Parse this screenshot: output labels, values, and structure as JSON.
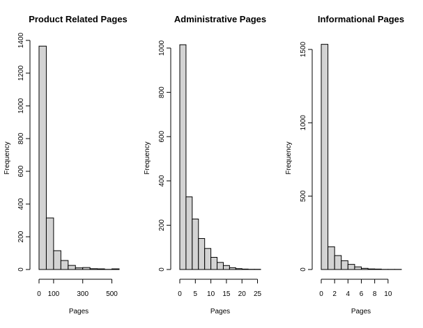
{
  "chart_data": [
    {
      "type": "bar",
      "title": "Product Related Pages",
      "xlabel": "Pages",
      "ylabel": "Frequency",
      "bin_edges": [
        0,
        50,
        100,
        150,
        200,
        250,
        300,
        350,
        400,
        450,
        500,
        550
      ],
      "values": [
        1365,
        315,
        115,
        55,
        25,
        10,
        12,
        5,
        4,
        1,
        4
      ],
      "xlim": [
        0,
        550
      ],
      "ylim": [
        0,
        1400
      ],
      "x_ticks": [
        0,
        100,
        300,
        500
      ],
      "x_tick_labels": [
        "0",
        "100",
        "300",
        "500"
      ],
      "y_ticks": [
        0,
        200,
        400,
        600,
        800,
        1000,
        1200,
        1400
      ],
      "y_tick_labels": [
        "0",
        "200",
        "400",
        "600",
        "800",
        "1000",
        "1200",
        "1400"
      ],
      "bar_color": "#d3d3d3",
      "grid": false
    },
    {
      "type": "bar",
      "title": "Administrative Pages",
      "xlabel": "Pages",
      "ylabel": "Frequency",
      "bin_edges": [
        0,
        2,
        4,
        6,
        8,
        10,
        12,
        14,
        16,
        18,
        20,
        22,
        24,
        26
      ],
      "values": [
        1015,
        328,
        228,
        140,
        95,
        55,
        32,
        18,
        8,
        4,
        2,
        1,
        1
      ],
      "xlim": [
        0,
        26
      ],
      "ylim": [
        0,
        1000
      ],
      "x_ticks": [
        0,
        5,
        10,
        15,
        20,
        25
      ],
      "x_tick_labels": [
        "0",
        "5",
        "10",
        "15",
        "20",
        "25"
      ],
      "y_ticks": [
        0,
        200,
        400,
        600,
        800,
        1000
      ],
      "y_tick_labels": [
        "0",
        "200",
        "400",
        "600",
        "800",
        "1000"
      ],
      "bar_color": "#d3d3d3",
      "grid": false
    },
    {
      "type": "bar",
      "title": "Informational Pages",
      "xlabel": "Pages",
      "ylabel": "Frequency",
      "bin_edges": [
        0,
        1,
        2,
        3,
        4,
        5,
        6,
        7,
        8,
        9,
        10,
        11,
        12
      ],
      "values": [
        1535,
        155,
        95,
        60,
        35,
        18,
        8,
        4,
        3,
        1,
        1,
        1
      ],
      "xlim": [
        0,
        12
      ],
      "ylim": [
        0,
        1500
      ],
      "x_ticks": [
        0,
        2,
        4,
        6,
        8,
        10
      ],
      "x_tick_labels": [
        "0",
        "2",
        "4",
        "6",
        "8",
        "10"
      ],
      "y_ticks": [
        0,
        500,
        1000,
        1500
      ],
      "y_tick_labels": [
        "0",
        "500",
        "1000",
        "1500"
      ],
      "bar_color": "#d3d3d3",
      "grid": false
    }
  ]
}
